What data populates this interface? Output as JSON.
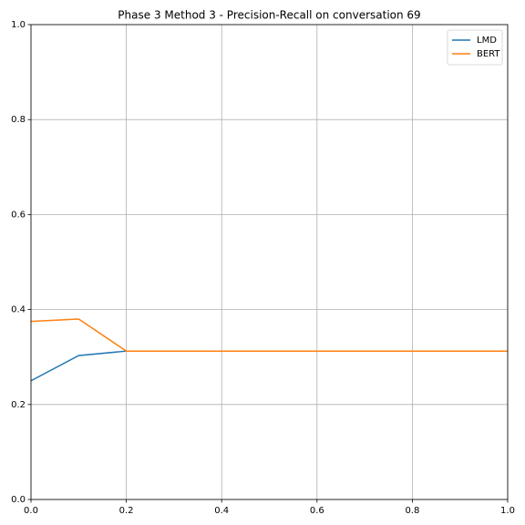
{
  "chart_data": {
    "type": "line",
    "title": "Phase 3 Method 3 - Precision-Recall on conversation 69",
    "x": [
      0,
      0.1,
      0.2,
      0.3,
      0.4,
      0.5,
      0.6,
      0.7,
      0.8,
      0.9,
      1.0
    ],
    "series": [
      {
        "name": "LMD",
        "color": "#1f77b4",
        "values": [
          0.25,
          0.303,
          0.3125,
          0.3125,
          0.3125,
          0.3125,
          0.3125,
          0.3125,
          0.3125,
          0.3125,
          0.3125
        ]
      },
      {
        "name": "BERT",
        "color": "#ff7f0e",
        "values": [
          0.375,
          0.38,
          0.3125,
          0.3125,
          0.3125,
          0.3125,
          0.3125,
          0.3125,
          0.3125,
          0.3125,
          0.3125
        ]
      }
    ],
    "xlim": [
      0,
      1
    ],
    "ylim": [
      0,
      1
    ],
    "xticks": [
      {
        "value": 0,
        "label": "0.0"
      },
      0.2,
      0.4,
      0.6,
      0.8,
      {
        "value": 1,
        "label": "1.0"
      }
    ],
    "yticks": [
      {
        "value": 0,
        "label": "0.0"
      },
      0.2,
      0.4,
      0.6,
      0.8,
      {
        "value": 1,
        "label": "1.0"
      }
    ],
    "grid": true,
    "legend": "upper right"
  }
}
